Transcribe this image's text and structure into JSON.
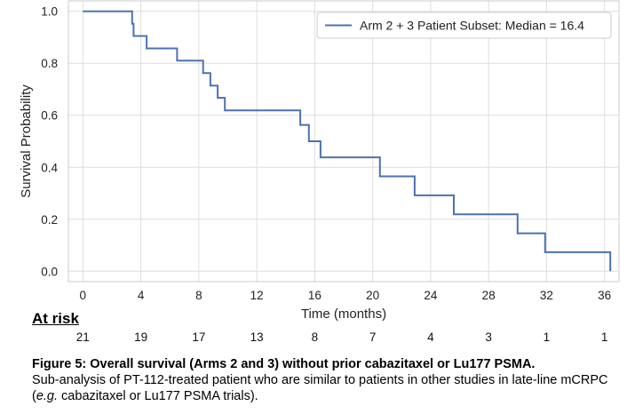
{
  "chart_data": {
    "type": "line",
    "xlabel": "Time (months)",
    "ylabel": "Survival Probability",
    "xlim": [
      -1,
      37
    ],
    "ylim": [
      -0.04,
      1.04
    ],
    "xticks": [
      0,
      4,
      8,
      12,
      16,
      20,
      24,
      28,
      32,
      36
    ],
    "yticks": [
      "0.0",
      "0.2",
      "0.4",
      "0.6",
      "0.8",
      "1.0"
    ],
    "grid": true,
    "legend_position": "top-right",
    "color": "#4c72b0",
    "series": [
      {
        "name": "Arm 2 + 3 Patient Subset: Median = 16.4",
        "step_points": [
          [
            0,
            1.0
          ],
          [
            3.4,
            1.0
          ],
          [
            3.4,
            0.952
          ],
          [
            3.5,
            0.952
          ],
          [
            3.5,
            0.905
          ],
          [
            4.4,
            0.905
          ],
          [
            4.4,
            0.857
          ],
          [
            6.5,
            0.857
          ],
          [
            6.5,
            0.81
          ],
          [
            8.3,
            0.81
          ],
          [
            8.3,
            0.762
          ],
          [
            8.8,
            0.762
          ],
          [
            8.8,
            0.714
          ],
          [
            9.3,
            0.714
          ],
          [
            9.3,
            0.667
          ],
          [
            9.8,
            0.667
          ],
          [
            9.8,
            0.619
          ],
          [
            15.0,
            0.619
          ],
          [
            15.0,
            0.563
          ],
          [
            15.6,
            0.563
          ],
          [
            15.6,
            0.5
          ],
          [
            16.4,
            0.5
          ],
          [
            16.4,
            0.438
          ],
          [
            20.5,
            0.438
          ],
          [
            20.5,
            0.365
          ],
          [
            22.9,
            0.365
          ],
          [
            22.9,
            0.292
          ],
          [
            25.6,
            0.292
          ],
          [
            25.6,
            0.219
          ],
          [
            30.0,
            0.219
          ],
          [
            30.0,
            0.146
          ],
          [
            31.9,
            0.146
          ],
          [
            31.9,
            0.073
          ],
          [
            36.4,
            0.073
          ],
          [
            36.4,
            0.0
          ]
        ]
      }
    ],
    "at_risk_title": "At risk",
    "at_risk": [
      {
        "x": 0,
        "n": "21"
      },
      {
        "x": 4,
        "n": "19"
      },
      {
        "x": 8,
        "n": "17"
      },
      {
        "x": 12,
        "n": "13"
      },
      {
        "x": 16,
        "n": "8"
      },
      {
        "x": 20,
        "n": "7"
      },
      {
        "x": 24,
        "n": "4"
      },
      {
        "x": 28,
        "n": "3"
      },
      {
        "x": 32,
        "n": "1"
      },
      {
        "x": 36,
        "n": "1"
      }
    ]
  },
  "caption": {
    "title": "Figure 5: Overall survival (Arms 2 and 3) without prior cabazitaxel or Lu177 PSMA.",
    "body_part1": "Sub-analysis of PT-112-treated patient who are similar to patients in other studies in late-line mCRPC (",
    "body_eg": "e.g.",
    "body_part2": " cabazitaxel or Lu177 PSMA trials)."
  }
}
